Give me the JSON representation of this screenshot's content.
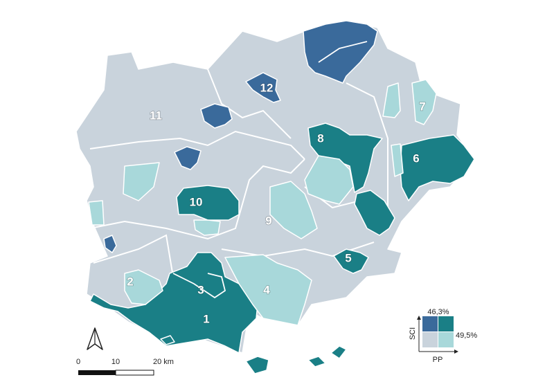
{
  "map": {
    "zone_labels": [
      "1",
      "2",
      "3",
      "4",
      "5",
      "6",
      "7",
      "8",
      "9",
      "10",
      "11",
      "12"
    ],
    "legend": {
      "top_value": "46,3%",
      "right_value": "49,5%",
      "y_axis": "SCI",
      "x_axis": "PP"
    },
    "scale_bar": {
      "ticks": [
        "0",
        "10",
        "20 km"
      ]
    }
  }
}
